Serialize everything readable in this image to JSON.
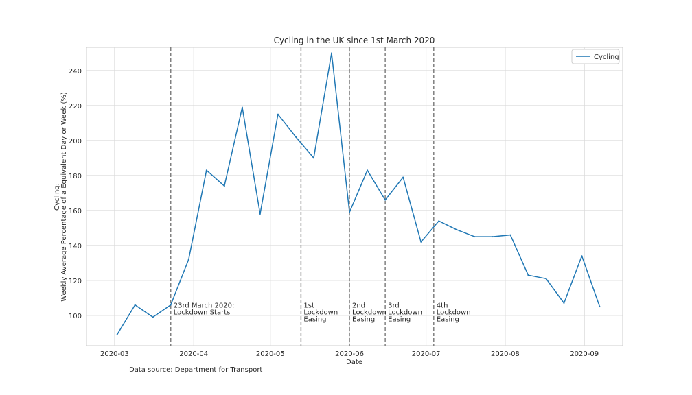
{
  "chart_data": {
    "type": "line",
    "title": "Cycling in the UK since 1st March 2020",
    "xlabel": "Date",
    "ylabel_lines": [
      "Cycling:",
      "Weekly Average Percentage of a Equivalent Day or Week (%)"
    ],
    "source": "Data source: Department for Transport",
    "x_axis": "date",
    "xlim": [
      "2020-02-19",
      "2020-09-16"
    ],
    "ylim": [
      82.7,
      253.3
    ],
    "xticks": [
      "2020-03-01",
      "2020-04-01",
      "2020-05-01",
      "2020-06-01",
      "2020-07-01",
      "2020-08-01",
      "2020-09-01"
    ],
    "xtick_labels": [
      "2020-03",
      "2020-04",
      "2020-05",
      "2020-06",
      "2020-07",
      "2020-08",
      "2020-09"
    ],
    "yticks": [
      100,
      120,
      140,
      160,
      180,
      200,
      220,
      240
    ],
    "grid": true,
    "legend_position": "top-right",
    "series": [
      {
        "name": "Cycling",
        "color": "#1f77b4",
        "x": [
          "2020-03-02",
          "2020-03-09",
          "2020-03-16",
          "2020-03-23",
          "2020-03-30",
          "2020-04-06",
          "2020-04-13",
          "2020-04-20",
          "2020-04-27",
          "2020-05-04",
          "2020-05-11",
          "2020-05-18",
          "2020-05-25",
          "2020-06-01",
          "2020-06-08",
          "2020-06-15",
          "2020-06-22",
          "2020-06-29",
          "2020-07-06",
          "2020-07-13",
          "2020-07-20",
          "2020-07-27",
          "2020-08-03",
          "2020-08-10",
          "2020-08-17",
          "2020-08-24",
          "2020-08-31",
          "2020-09-07"
        ],
        "values": [
          89,
          106,
          99,
          106,
          132,
          183,
          174,
          219,
          158,
          215,
          202,
          190,
          250,
          159,
          183,
          166,
          179,
          142,
          154,
          149,
          145,
          145,
          146,
          123,
          121,
          107,
          134,
          105
        ]
      }
    ],
    "vlines": [
      {
        "date": "2020-03-23",
        "lines": [
          "23rd March 2020:",
          "Lockdown Starts"
        ]
      },
      {
        "date": "2020-05-13",
        "lines": [
          "1st",
          "Lockdown",
          "Easing"
        ]
      },
      {
        "date": "2020-06-01",
        "lines": [
          "2nd",
          "Lockdown",
          "Easing"
        ]
      },
      {
        "date": "2020-06-15",
        "lines": [
          "3rd",
          "Lockdown",
          "Easing"
        ]
      },
      {
        "date": "2020-07-04",
        "lines": [
          "4th",
          "Lockdown",
          "Easing"
        ]
      }
    ]
  }
}
